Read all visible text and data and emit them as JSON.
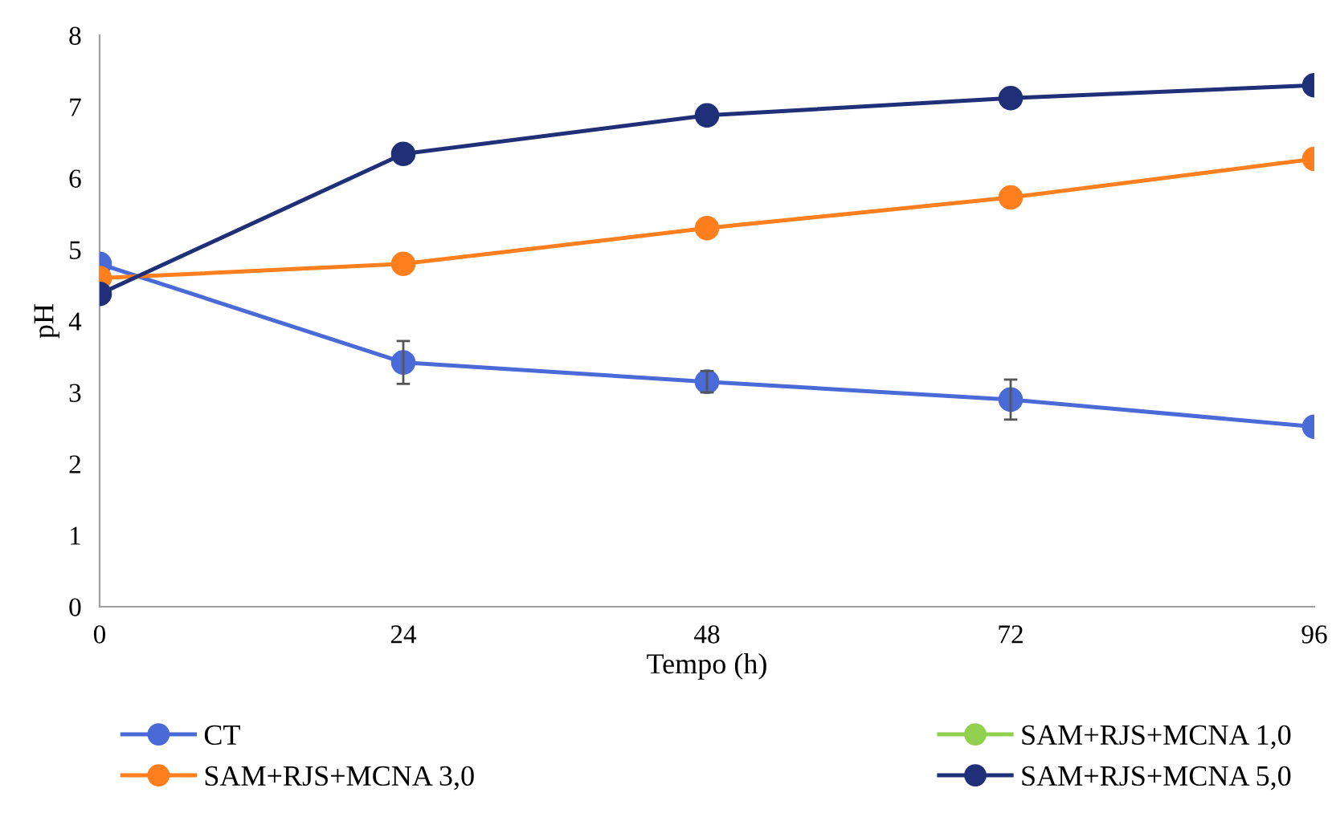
{
  "chart_data": {
    "type": "line",
    "xlabel": "Tempo (h)",
    "ylabel": "pH",
    "x": [
      0,
      24,
      48,
      72,
      96
    ],
    "xlim": [
      0,
      96
    ],
    "xticks": [
      0,
      24,
      48,
      72,
      96
    ],
    "ylim": [
      0,
      8
    ],
    "yticks": [
      0,
      1,
      2,
      3,
      4,
      5,
      6,
      7,
      8
    ],
    "grid": false,
    "legend": "bottom",
    "marker": "circle",
    "line_style": "solid",
    "series": [
      {
        "name": "CT",
        "color": "#4a6ad8",
        "values": [
          4.8,
          3.42,
          3.15,
          2.9,
          2.52
        ],
        "errors": [
          null,
          0.3,
          0.15,
          0.28,
          null
        ]
      },
      {
        "name": "SAM+RJS+MCNA 1,0",
        "color": "#92d050",
        "values": [
          null,
          null,
          null,
          null,
          null
        ]
      },
      {
        "name": "SAM+RJS+MCNA 3,0",
        "color": "#ff7f1e",
        "values": [
          4.6,
          4.8,
          5.3,
          5.73,
          6.27
        ]
      },
      {
        "name": "SAM+RJS+MCNA 5,0",
        "color": "#1f2f78",
        "values": [
          4.38,
          6.34,
          6.88,
          7.12,
          7.3
        ]
      }
    ]
  }
}
